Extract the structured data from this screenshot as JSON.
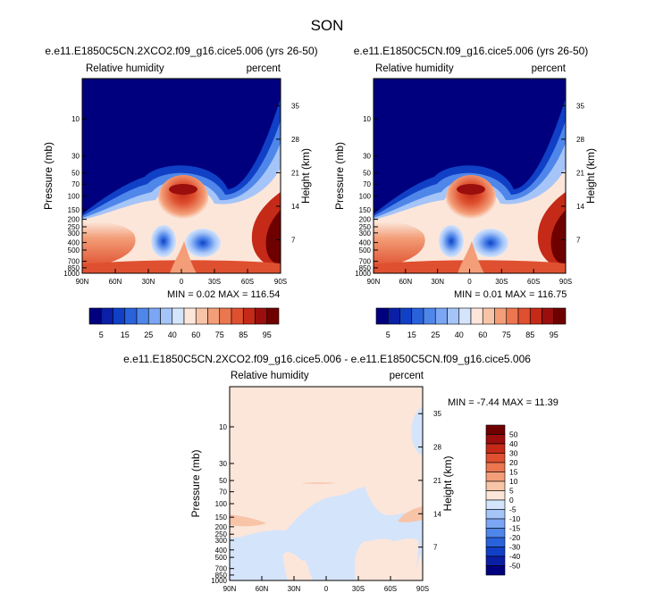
{
  "page": {
    "title": "SON"
  },
  "colors": {
    "rh_scale": [
      "#00007f",
      "#0a1fa6",
      "#1040c6",
      "#2a62dc",
      "#4f86ea",
      "#7aa6f3",
      "#a5c4f8",
      "#d4e4fb",
      "#fce6da",
      "#f8c4a8",
      "#f39e78",
      "#ec7650",
      "#df5030",
      "#c42a17",
      "#9a0f0d",
      "#6e0000"
    ],
    "diff_scale": [
      "#00007f",
      "#0a1fa6",
      "#1040c6",
      "#2a62dc",
      "#4f86ea",
      "#7aa6f3",
      "#a5c4f8",
      "#d4e4fb",
      "#fce6da",
      "#f8c4a8",
      "#f39e78",
      "#ec7650",
      "#df5030",
      "#c42a17",
      "#9a0f0d",
      "#6e0000"
    ]
  },
  "chart_data": [
    {
      "type": "heatmap",
      "title": "e.e11.E1850C5CN.2XCO2.f09_g16.cice5.006 (yrs 26-50)",
      "variable": "Relative humidity",
      "units": "percent",
      "ylabel": "Pressure (mb)",
      "ylabel_right": "Height (km)",
      "x_ticks": [
        "90N",
        "60N",
        "30N",
        "0",
        "30S",
        "60S",
        "90S"
      ],
      "y_ticks": [
        "10",
        "30",
        "50",
        "70",
        "100",
        "150",
        "200",
        "250",
        "300",
        "400",
        "500",
        "700",
        "850",
        "1000"
      ],
      "y_ticks_right": [
        "35",
        "28",
        "21",
        "14",
        "7"
      ],
      "stats": "MIN =  0.02  MAX = 116.54",
      "min": 0.02,
      "max": 116.54
    },
    {
      "type": "heatmap",
      "title": "e.e11.E1850C5CN.f09_g16.cice5.006 (yrs 26-50)",
      "variable": "Relative humidity",
      "units": "percent",
      "ylabel": "Pressure (mb)",
      "ylabel_right": "Height (km)",
      "x_ticks": [
        "90N",
        "60N",
        "30N",
        "0",
        "30S",
        "60S",
        "90S"
      ],
      "y_ticks": [
        "10",
        "30",
        "50",
        "70",
        "100",
        "150",
        "200",
        "250",
        "300",
        "400",
        "500",
        "700",
        "850",
        "1000"
      ],
      "y_ticks_right": [
        "35",
        "28",
        "21",
        "14",
        "7"
      ],
      "stats": "MIN =  0.01  MAX = 116.75",
      "min": 0.01,
      "max": 116.75
    },
    {
      "type": "heatmap",
      "title": "e.e11.E1850C5CN.2XCO2.f09_g16.cice5.006 - e.e11.E1850C5CN.f09_g16.cice5.006",
      "variable": "Relative humidity",
      "units": "percent",
      "ylabel": "Pressure (mb)",
      "ylabel_right": "Height (km)",
      "x_ticks": [
        "90N",
        "60N",
        "30N",
        "0",
        "30S",
        "60S",
        "90S"
      ],
      "y_ticks": [
        "10",
        "30",
        "50",
        "70",
        "100",
        "150",
        "200",
        "250",
        "300",
        "400",
        "500",
        "700",
        "850",
        "1000"
      ],
      "y_ticks_right": [
        "35",
        "28",
        "21",
        "14",
        "7"
      ],
      "stats": "MIN = -7.44  MAX = 11.39",
      "min": -7.44,
      "max": 11.39
    }
  ],
  "colorbars": {
    "rh_labels": [
      "5",
      "15",
      "25",
      "40",
      "60",
      "75",
      "85",
      "95"
    ],
    "diff_labels": [
      "50",
      "40",
      "30",
      "20",
      "15",
      "10",
      "5",
      "0",
      "-5",
      "-10",
      "-15",
      "-20",
      "-30",
      "-40",
      "-50"
    ]
  }
}
